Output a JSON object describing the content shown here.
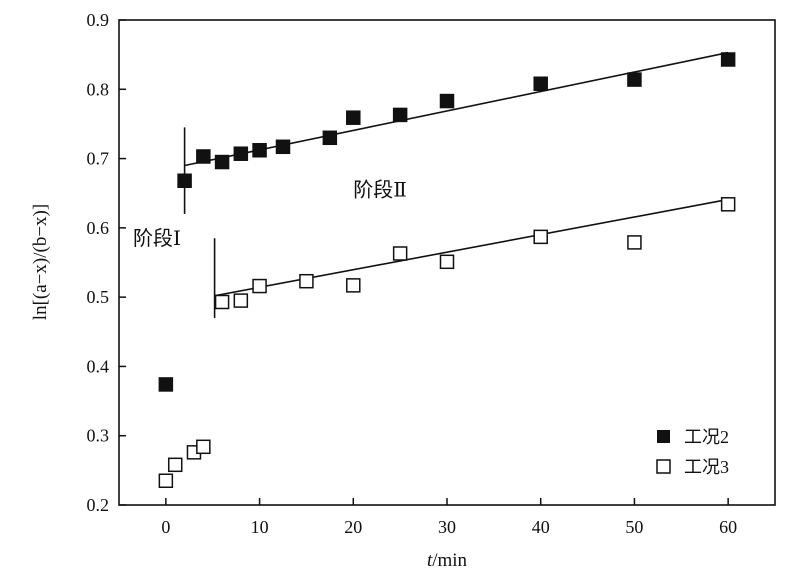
{
  "chart_data": {
    "type": "scatter",
    "title": "",
    "xlabel_italic": "t",
    "xlabel_rest": "/min",
    "ylabel": "ln[(a−x)/(b−x)]",
    "xlim": [
      -5,
      65
    ],
    "ylim": [
      0.2,
      0.9
    ],
    "xticks": [
      0,
      10,
      20,
      30,
      40,
      50,
      60
    ],
    "yticks": [
      0.2,
      0.3,
      0.4,
      0.5,
      0.6,
      0.7,
      0.8,
      0.9
    ],
    "grid": false,
    "legend_position": "bottom-right",
    "annotations": [
      {
        "text": "阶段Ⅰ",
        "x": -3.5,
        "y": 0.575
      },
      {
        "text": "阶段Ⅱ",
        "x": 20,
        "y": 0.645
      }
    ],
    "series": [
      {
        "name": "工况2",
        "marker": "filled-square",
        "x": [
          0,
          2,
          4,
          6,
          8,
          10,
          12.5,
          17.5,
          20,
          25,
          30,
          40,
          50,
          60
        ],
        "y": [
          0.374,
          0.668,
          0.703,
          0.695,
          0.707,
          0.712,
          0.717,
          0.73,
          0.759,
          0.763,
          0.783,
          0.808,
          0.814,
          0.843
        ],
        "fit_line": {
          "x": [
            2,
            60
          ],
          "y": [
            0.69,
            0.853
          ]
        },
        "stage_marker": {
          "x": 2,
          "y": [
            0.62,
            0.745
          ]
        }
      },
      {
        "name": "工况3",
        "marker": "open-square",
        "x": [
          0,
          1,
          3,
          4,
          6,
          8,
          10,
          15,
          20,
          25,
          30,
          40,
          50,
          60
        ],
        "y": [
          0.235,
          0.258,
          0.276,
          0.284,
          0.493,
          0.495,
          0.516,
          0.523,
          0.517,
          0.563,
          0.551,
          0.587,
          0.579,
          0.634
        ],
        "fit_line": {
          "x": [
            5.2,
            60
          ],
          "y": [
            0.502,
            0.641
          ]
        },
        "stage_marker": {
          "x": 5.2,
          "y": [
            0.47,
            0.585
          ]
        }
      }
    ]
  }
}
